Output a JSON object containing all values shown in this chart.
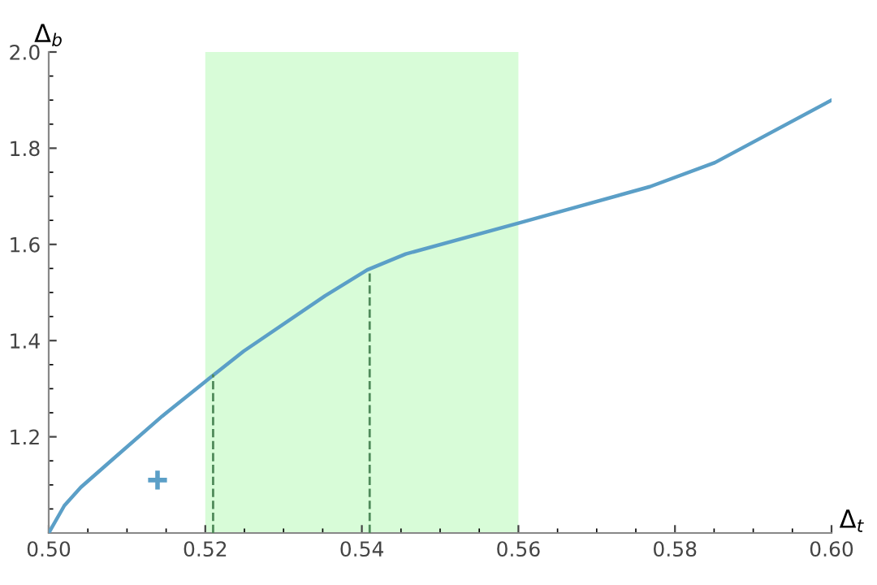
{
  "chart_data": {
    "type": "line",
    "xlabel": "Δ$_{t}$",
    "ylabel": "Δ$_{b}$",
    "series": [
      {
        "color": "#5b9fc7",
        "line_style": "solid",
        "x": [
          0.5,
          0.502,
          0.5041,
          0.5083,
          0.5145,
          0.5207,
          0.5249,
          0.5353,
          0.5407,
          0.5456,
          0.5602,
          0.5768,
          0.5851,
          0.6
        ],
        "values": [
          1.0,
          1.057,
          1.095,
          1.155,
          1.243,
          1.324,
          1.378,
          1.493,
          1.547,
          1.58,
          1.645,
          1.72,
          1.77,
          1.9
        ]
      },
      {
        "type": "line",
        "color": "#4f8a5a",
        "line_style": "dashed",
        "x": [
          0.521,
          0.521
        ],
        "values": [
          1.0,
          1.33
        ]
      },
      {
        "type": "line",
        "color": "#4f8a5a",
        "line_style": "dashed",
        "x": [
          0.541,
          0.541
        ],
        "values": [
          1.0,
          1.545
        ]
      },
      {
        "type": "scatter",
        "color": "#5b9fc7",
        "marker": "cross",
        "x": [
          0.5139
        ],
        "values": [
          1.11
        ]
      }
    ],
    "bands": [
      {
        "axis": "x",
        "from": 0.52,
        "to": 0.56,
        "color": "#d8fcd8"
      }
    ],
    "xlim": [
      0.5,
      0.6
    ],
    "ylim": [
      1.0,
      2.0
    ],
    "xticks": [
      {
        "value": 0.5,
        "label": "0.50"
      },
      {
        "value": 0.52,
        "label": "0.52"
      },
      {
        "value": 0.54,
        "label": "0.54"
      },
      {
        "value": 0.56,
        "label": "0.56"
      },
      {
        "value": 0.58,
        "label": "0.58"
      },
      {
        "value": 0.6,
        "label": "0.60"
      }
    ],
    "yticks": [
      1.2,
      1.4,
      1.6,
      1.8,
      {
        "value": 2.0,
        "label": "2.0"
      }
    ],
    "grid": false
  }
}
